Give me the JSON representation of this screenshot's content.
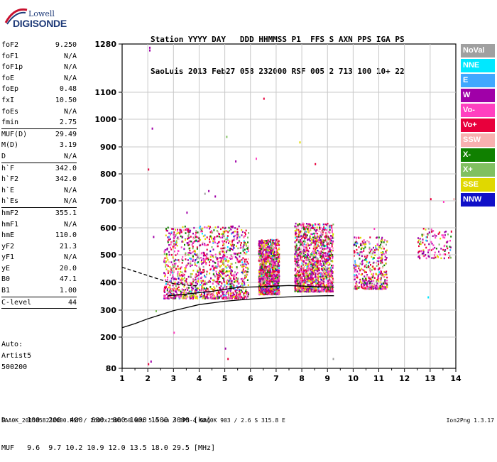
{
  "logo": {
    "line1": "Lowell",
    "line2": "DIGISONDE"
  },
  "header": {
    "labels": [
      "Station",
      "YYYY",
      "DAY",
      "DDD",
      "HHMMSS",
      "P1",
      "FFS",
      "S",
      "AXN",
      "PPS",
      "IGA",
      "PS"
    ],
    "values": [
      "SaoLuis",
      "2013",
      "Feb27",
      "058",
      "232000",
      "RSF",
      "005",
      "2",
      "713",
      "100",
      "10+",
      "22"
    ]
  },
  "params": [
    {
      "name": "foF2",
      "value": "9.250",
      "sep": false
    },
    {
      "name": "foF1",
      "value": "N/A",
      "sep": false
    },
    {
      "name": "foF1p",
      "value": "N/A",
      "sep": false
    },
    {
      "name": "foE",
      "value": "N/A",
      "sep": false
    },
    {
      "name": "foEp",
      "value": "0.48",
      "sep": false
    },
    {
      "name": "fxI",
      "value": "10.50",
      "sep": false
    },
    {
      "name": "foEs",
      "value": "N/A",
      "sep": false
    },
    {
      "name": "fmin",
      "value": "2.75",
      "sep": true
    },
    {
      "name": "MUF(D)",
      "value": "29.49",
      "sep": false
    },
    {
      "name": "M(D)",
      "value": "3.19",
      "sep": false
    },
    {
      "name": "D",
      "value": "N/A",
      "sep": true
    },
    {
      "name": "h`F",
      "value": "342.0",
      "sep": false
    },
    {
      "name": "h`F2",
      "value": "342.0",
      "sep": false
    },
    {
      "name": "h`E",
      "value": "N/A",
      "sep": false
    },
    {
      "name": "h`Es",
      "value": "N/A",
      "sep": true
    },
    {
      "name": "hmF2",
      "value": "355.1",
      "sep": false
    },
    {
      "name": "hmF1",
      "value": "N/A",
      "sep": false
    },
    {
      "name": "hmE",
      "value": "110.0",
      "sep": false
    },
    {
      "name": "yF2",
      "value": "21.3",
      "sep": false
    },
    {
      "name": "yF1",
      "value": "N/A",
      "sep": false
    },
    {
      "name": "yE",
      "value": "20.0",
      "sep": false
    },
    {
      "name": "B0",
      "value": "47.1",
      "sep": false
    },
    {
      "name": "B1",
      "value": "1.00",
      "sep": true
    },
    {
      "name": "C-level",
      "value": "44",
      "sep": true
    }
  ],
  "auto": [
    "Auto:",
    "Artist5",
    "500200"
  ],
  "legend": [
    {
      "label": "NoVal",
      "color": "#a0a0a0"
    },
    {
      "label": "NNE",
      "color": "#00e8ff"
    },
    {
      "label": "E",
      "color": "#40a8ff"
    },
    {
      "label": "W",
      "color": "#a000a8"
    },
    {
      "label": "Vo-",
      "color": "#ff40c0"
    },
    {
      "label": "Vo+",
      "color": "#e8003c"
    },
    {
      "label": "SSW",
      "color": "#f8b0b0"
    },
    {
      "label": "X-",
      "color": "#108000"
    },
    {
      "label": "X+",
      "color": "#80c060"
    },
    {
      "label": "SSE",
      "color": "#e0d800"
    },
    {
      "label": "NNW",
      "color": "#1010c8"
    }
  ],
  "bottom_table": {
    "d_row": "D     100  200  400  600  800 1000 1500 3000 [km]",
    "muf_row": "MUF   9.6  9.7 10.2 10.9 12.0 13.5 18.0 29.5 [MHz]"
  },
  "footer": {
    "file": "SAA0K_2013058232000.RSF / 260fx256h 50 kHz 5.0 km / DPS-4 SAA0K 903 / 2.6 S 315.8 E",
    "version": "Ion2Png 1.3.17"
  },
  "chart_data": {
    "type": "scatter",
    "xlabel": "",
    "ylabel": "",
    "xlim": [
      1,
      14
    ],
    "ylim": [
      80,
      1280
    ],
    "x_ticks": [
      "1",
      "2",
      "3",
      "4",
      "5",
      "6",
      "7",
      "8",
      "9",
      "10",
      "11",
      "12",
      "13",
      "14"
    ],
    "y_ticks": [
      "80",
      "200",
      "300",
      "400",
      "500",
      "600",
      "700",
      "800",
      "900",
      "1000",
      "1100",
      "1280"
    ],
    "grid": true,
    "height_scale": "ionogram (non-linear virtual height)",
    "echo_traces": [
      {
        "name": "F-layer echoes",
        "x_range": [
          2.6,
          5.9
        ],
        "y_range": [
          345,
          610
        ],
        "density": "high"
      },
      {
        "name": "F-layer echoes",
        "x_range": [
          6.3,
          7.1
        ],
        "y_range": [
          360,
          560
        ],
        "density": "high"
      },
      {
        "name": "F-layer echoes",
        "x_range": [
          7.7,
          9.2
        ],
        "y_range": [
          370,
          620
        ],
        "density": "high"
      },
      {
        "name": "F-layer echoes",
        "x_range": [
          10.0,
          11.3
        ],
        "y_range": [
          380,
          570
        ],
        "density": "medium"
      },
      {
        "name": "F-layer echoes",
        "x_range": [
          12.5,
          13.8
        ],
        "y_range": [
          490,
          600
        ],
        "density": "low"
      }
    ],
    "profile_solid": [
      [
        1.0,
        235
      ],
      [
        1.5,
        250
      ],
      [
        2.0,
        268
      ],
      [
        3.0,
        298
      ],
      [
        4.0,
        320
      ],
      [
        5.0,
        332
      ],
      [
        6.0,
        340
      ],
      [
        7.0,
        346
      ],
      [
        8.0,
        350
      ],
      [
        9.0,
        352
      ],
      [
        9.25,
        352
      ]
    ],
    "trace_solid": [
      [
        2.8,
        352
      ],
      [
        3.5,
        358
      ],
      [
        4.5,
        368
      ],
      [
        5.5,
        382
      ],
      [
        6.5,
        385
      ],
      [
        7.5,
        389
      ],
      [
        8.5,
        385
      ],
      [
        9.25,
        383
      ]
    ],
    "profile_dashed": [
      [
        1.0,
        455
      ],
      [
        1.5,
        440
      ],
      [
        2.0,
        425
      ],
      [
        2.5,
        410
      ],
      [
        3.0,
        396
      ],
      [
        3.5,
        390
      ],
      [
        4.0,
        388
      ]
    ]
  }
}
